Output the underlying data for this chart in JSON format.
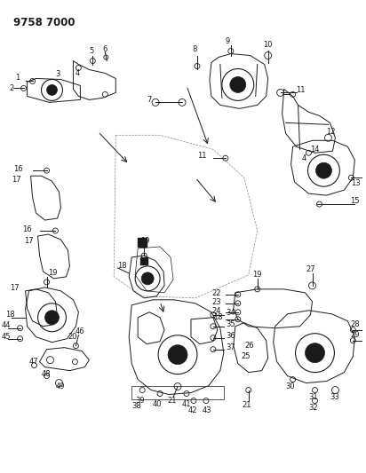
{
  "title": "9758 7000",
  "bg": "#ffffff",
  "fg": "#1a1a1a",
  "lw": 0.7,
  "figsize": [
    4.12,
    5.33
  ],
  "dpi": 100
}
